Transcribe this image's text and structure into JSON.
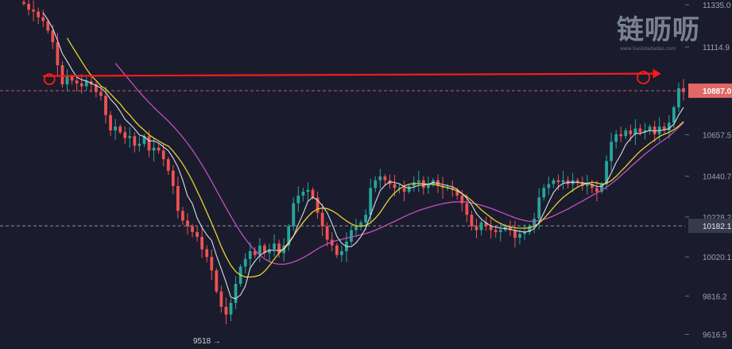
{
  "watermark": {
    "text": "链呖呖",
    "sub": "www.lianlidadadas.com"
  },
  "chart_data": {
    "type": "candlestick",
    "title": "",
    "xlabel": "",
    "ylabel": "",
    "ylim": [
      9540,
      11360
    ],
    "grid": false,
    "price_axis": {
      "position": "right",
      "tick_labels": [
        "11335.0",
        "11114.9",
        "10887.0",
        "10657.5",
        "10440.7",
        "10228.2",
        "10182.1",
        "10020.1",
        "9816.2",
        "9616.5"
      ],
      "ticks": [
        11335.0,
        11114.9,
        10657.5,
        10440.7,
        10228.2,
        10020.1,
        9816.2,
        9616.5
      ]
    },
    "markers": {
      "current_price": {
        "value": 10887.0,
        "label": "10887.0",
        "color": "#e06868"
      },
      "reference_line": {
        "value": 10182.1,
        "label": "10182.1",
        "color": "#c0c4d0"
      },
      "low_label": {
        "text": "9518 →",
        "value": 9518
      },
      "resistance_arrow": {
        "from_index": 4,
        "to_index": 129,
        "value": 10972,
        "color": "#ff1a1a"
      }
    },
    "series_colors": {
      "up": "#26a69a",
      "down": "#ef5350",
      "ma_fast": "#d8dde6",
      "ma_mid": "#e6d22e",
      "ma_slow": "#c24fbf"
    },
    "close": [
      11340,
      11310,
      11300,
      11270,
      11250,
      11200,
      11140,
      11020,
      10920,
      10960,
      10940,
      10925,
      10910,
      10935,
      10920,
      10880,
      10860,
      10760,
      10680,
      10700,
      10670,
      10640,
      10650,
      10600,
      10610,
      10650,
      10575,
      10590,
      10575,
      10530,
      10470,
      10390,
      10260,
      10210,
      10180,
      10150,
      10125,
      10060,
      10020,
      9950,
      9840,
      9760,
      9720,
      9780,
      9880,
      9970,
      10010,
      10050,
      10030,
      10080,
      10040,
      10060,
      10090,
      10040,
      10080,
      10180,
      10300,
      10340,
      10360,
      10370,
      10330,
      10250,
      10180,
      10110,
      10080,
      10030,
      10050,
      10100,
      10160,
      10180,
      10200,
      10240,
      10380,
      10420,
      10440,
      10420,
      10400,
      10380,
      10380,
      10360,
      10390,
      10410,
      10420,
      10380,
      10400,
      10420,
      10390,
      10380,
      10380,
      10370,
      10340,
      10300,
      10240,
      10180,
      10160,
      10200,
      10180,
      10160,
      10150,
      10160,
      10180,
      10160,
      10120,
      10140,
      10150,
      10180,
      10220,
      10330,
      10380,
      10400,
      10420,
      10410,
      10420,
      10400,
      10420,
      10410,
      10390,
      10400,
      10380,
      10360,
      10400,
      10520,
      10620,
      10660,
      10650,
      10680,
      10660,
      10690,
      10670,
      10680,
      10700,
      10660,
      10700,
      10680,
      10720,
      10800,
      10900,
      10880
    ],
    "ma_fast": [
      null,
      null,
      null,
      null,
      11294,
      11256,
      11212,
      11148,
      11080,
      11040,
      10996,
      10958,
      10944,
      10938,
      10926,
      10914,
      10902,
      10879,
      10842,
      10816,
      10780,
      10738,
      10714,
      10688,
      10656,
      10648,
      10625,
      10625,
      10614,
      10594,
      10574,
      10536,
      10488,
      10420,
      10338,
      10298,
      10223,
      10173,
      10135,
      10105,
      10028,
      9958,
      9887,
      9810,
      9802,
      9822,
      9868,
      9962,
      9998,
      10028,
      10044,
      10056,
      10054,
      10054,
      10060,
      10090,
      10128,
      10190,
      10246,
      10310,
      10332,
      10316,
      10288,
      10250,
      10194,
      10128,
      10092,
      10074,
      10074,
      10094,
      10126,
      10170,
      10238,
      10304,
      10366,
      10394,
      10412,
      10408,
      10402,
      10386,
      10378,
      10384,
      10394,
      10394,
      10400,
      10408,
      10404,
      10398,
      10392,
      10386,
      10372,
      10350,
      10326,
      10292,
      10246,
      10218,
      10198,
      10182,
      10176,
      10170,
      10168,
      10164,
      10158,
      10154,
      10150,
      10154,
      10168,
      10200,
      10250,
      10306,
      10356,
      10386,
      10404,
      10408,
      10410,
      10408,
      10406,
      10404,
      10398,
      10388,
      10388,
      10410,
      10458,
      10512,
      10554,
      10606,
      10638,
      10664,
      10664,
      10672,
      10680,
      10676,
      10680,
      10682,
      10690,
      10712,
      10760,
      10800
    ],
    "ma_mid": [
      null,
      null,
      null,
      null,
      null,
      null,
      null,
      null,
      null,
      11162,
      11120,
      11080,
      11040,
      11000,
      10965,
      10940,
      10912,
      10896,
      10870,
      10844,
      10818,
      10786,
      10760,
      10730,
      10703,
      10681,
      10657,
      10640,
      10625,
      10610,
      10598,
      10572,
      10540,
      10505,
      10463,
      10417,
      10363,
      10310,
      10254,
      10196,
      10137,
      10074,
      10020,
      9976,
      9944,
      9925,
      9916,
      9915,
      9918,
      9925,
      9945,
      9975,
      10008,
      10040,
      10065,
      10095,
      10130,
      10166,
      10200,
      10230,
      10255,
      10270,
      10275,
      10272,
      10261,
      10246,
      10226,
      10208,
      10192,
      10182,
      10180,
      10184,
      10198,
      10222,
      10252,
      10290,
      10326,
      10354,
      10375,
      10390,
      10400,
      10402,
      10404,
      10402,
      10400,
      10398,
      10394,
      10388,
      10382,
      10374,
      10364,
      10350,
      10334,
      10314,
      10290,
      10266,
      10245,
      10226,
      10208,
      10194,
      10184,
      10176,
      10172,
      10170,
      10170,
      10172,
      10180,
      10196,
      10220,
      10248,
      10278,
      10306,
      10330,
      10350,
      10368,
      10384,
      10396,
      10404,
      10410,
      10406,
      10400,
      10404,
      10418,
      10440,
      10466,
      10492,
      10520,
      10546,
      10572,
      10592,
      10612,
      10630,
      10648,
      10660,
      10670,
      10684,
      10702,
      10726
    ],
    "ma_slow": [
      null,
      null,
      null,
      null,
      null,
      null,
      null,
      null,
      null,
      null,
      null,
      null,
      null,
      null,
      null,
      null,
      null,
      null,
      null,
      11030,
      11000,
      10970,
      10940,
      10910,
      10880,
      10852,
      10826,
      10800,
      10776,
      10752,
      10728,
      10702,
      10674,
      10644,
      10612,
      10578,
      10540,
      10500,
      10458,
      10414,
      10368,
      10322,
      10276,
      10232,
      10190,
      10150,
      10114,
      10082,
      10054,
      10030,
      10010,
      9996,
      9986,
      9982,
      9982,
      9986,
      9994,
      10004,
      10016,
      10030,
      10046,
      10062,
      10076,
      10088,
      10098,
      10106,
      10112,
      10118,
      10124,
      10130,
      10136,
      10142,
      10150,
      10160,
      10170,
      10182,
      10194,
      10206,
      10218,
      10230,
      10242,
      10252,
      10262,
      10270,
      10278,
      10286,
      10292,
      10298,
      10302,
      10306,
      10308,
      10308,
      10306,
      10302,
      10296,
      10290,
      10282,
      10274,
      10264,
      10254,
      10244,
      10234,
      10224,
      10216,
      10210,
      10206,
      10206,
      10210,
      10216,
      10224,
      10234,
      10246,
      10258,
      10270,
      10284,
      10298,
      10312,
      10326,
      10340,
      10354,
      10368,
      10384,
      10402,
      10422,
      10444,
      10466,
      10490,
      10512,
      10534,
      10556,
      10576,
      10596,
      10614,
      10632,
      10650,
      10672,
      10696,
      10720
    ]
  }
}
